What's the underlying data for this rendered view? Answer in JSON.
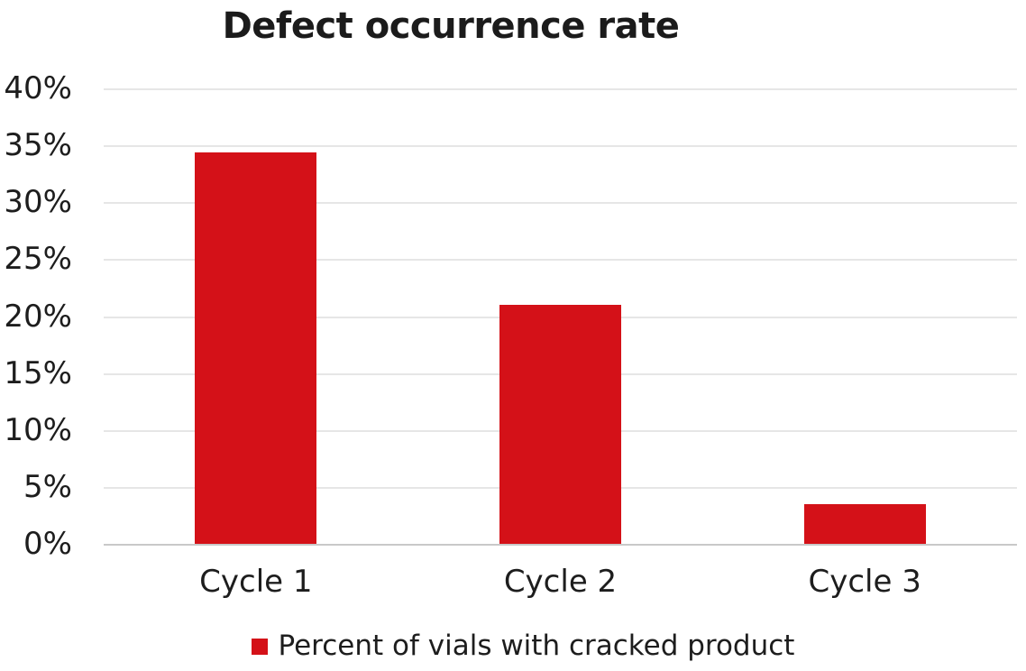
{
  "title": "Defect occurrence rate",
  "colors": {
    "bar": "#d41118",
    "gridline": "#e6e6e6",
    "axis_line": "#c9c9c9",
    "text": "#1d1d1d"
  },
  "legend": {
    "marker": "red-square",
    "label": "Percent of vials with cracked product"
  },
  "chart_data": {
    "type": "bar",
    "title": "Defect occurrence rate",
    "categories": [
      "Cycle 1",
      "Cycle 2",
      "Cycle 3"
    ],
    "series": [
      {
        "name": "Percent of vials with cracked product",
        "values": [
          34.4,
          21.0,
          3.5
        ],
        "color": "#d41118"
      }
    ],
    "xlabel": "",
    "ylabel": "",
    "ylim": [
      0,
      40
    ],
    "ytick_step": 5,
    "yticks": [
      "0%",
      "5%",
      "10%",
      "15%",
      "20%",
      "25%",
      "30%",
      "35%",
      "40%"
    ],
    "ytick_unit": "percent",
    "grid": true,
    "legend_position": "bottom"
  }
}
